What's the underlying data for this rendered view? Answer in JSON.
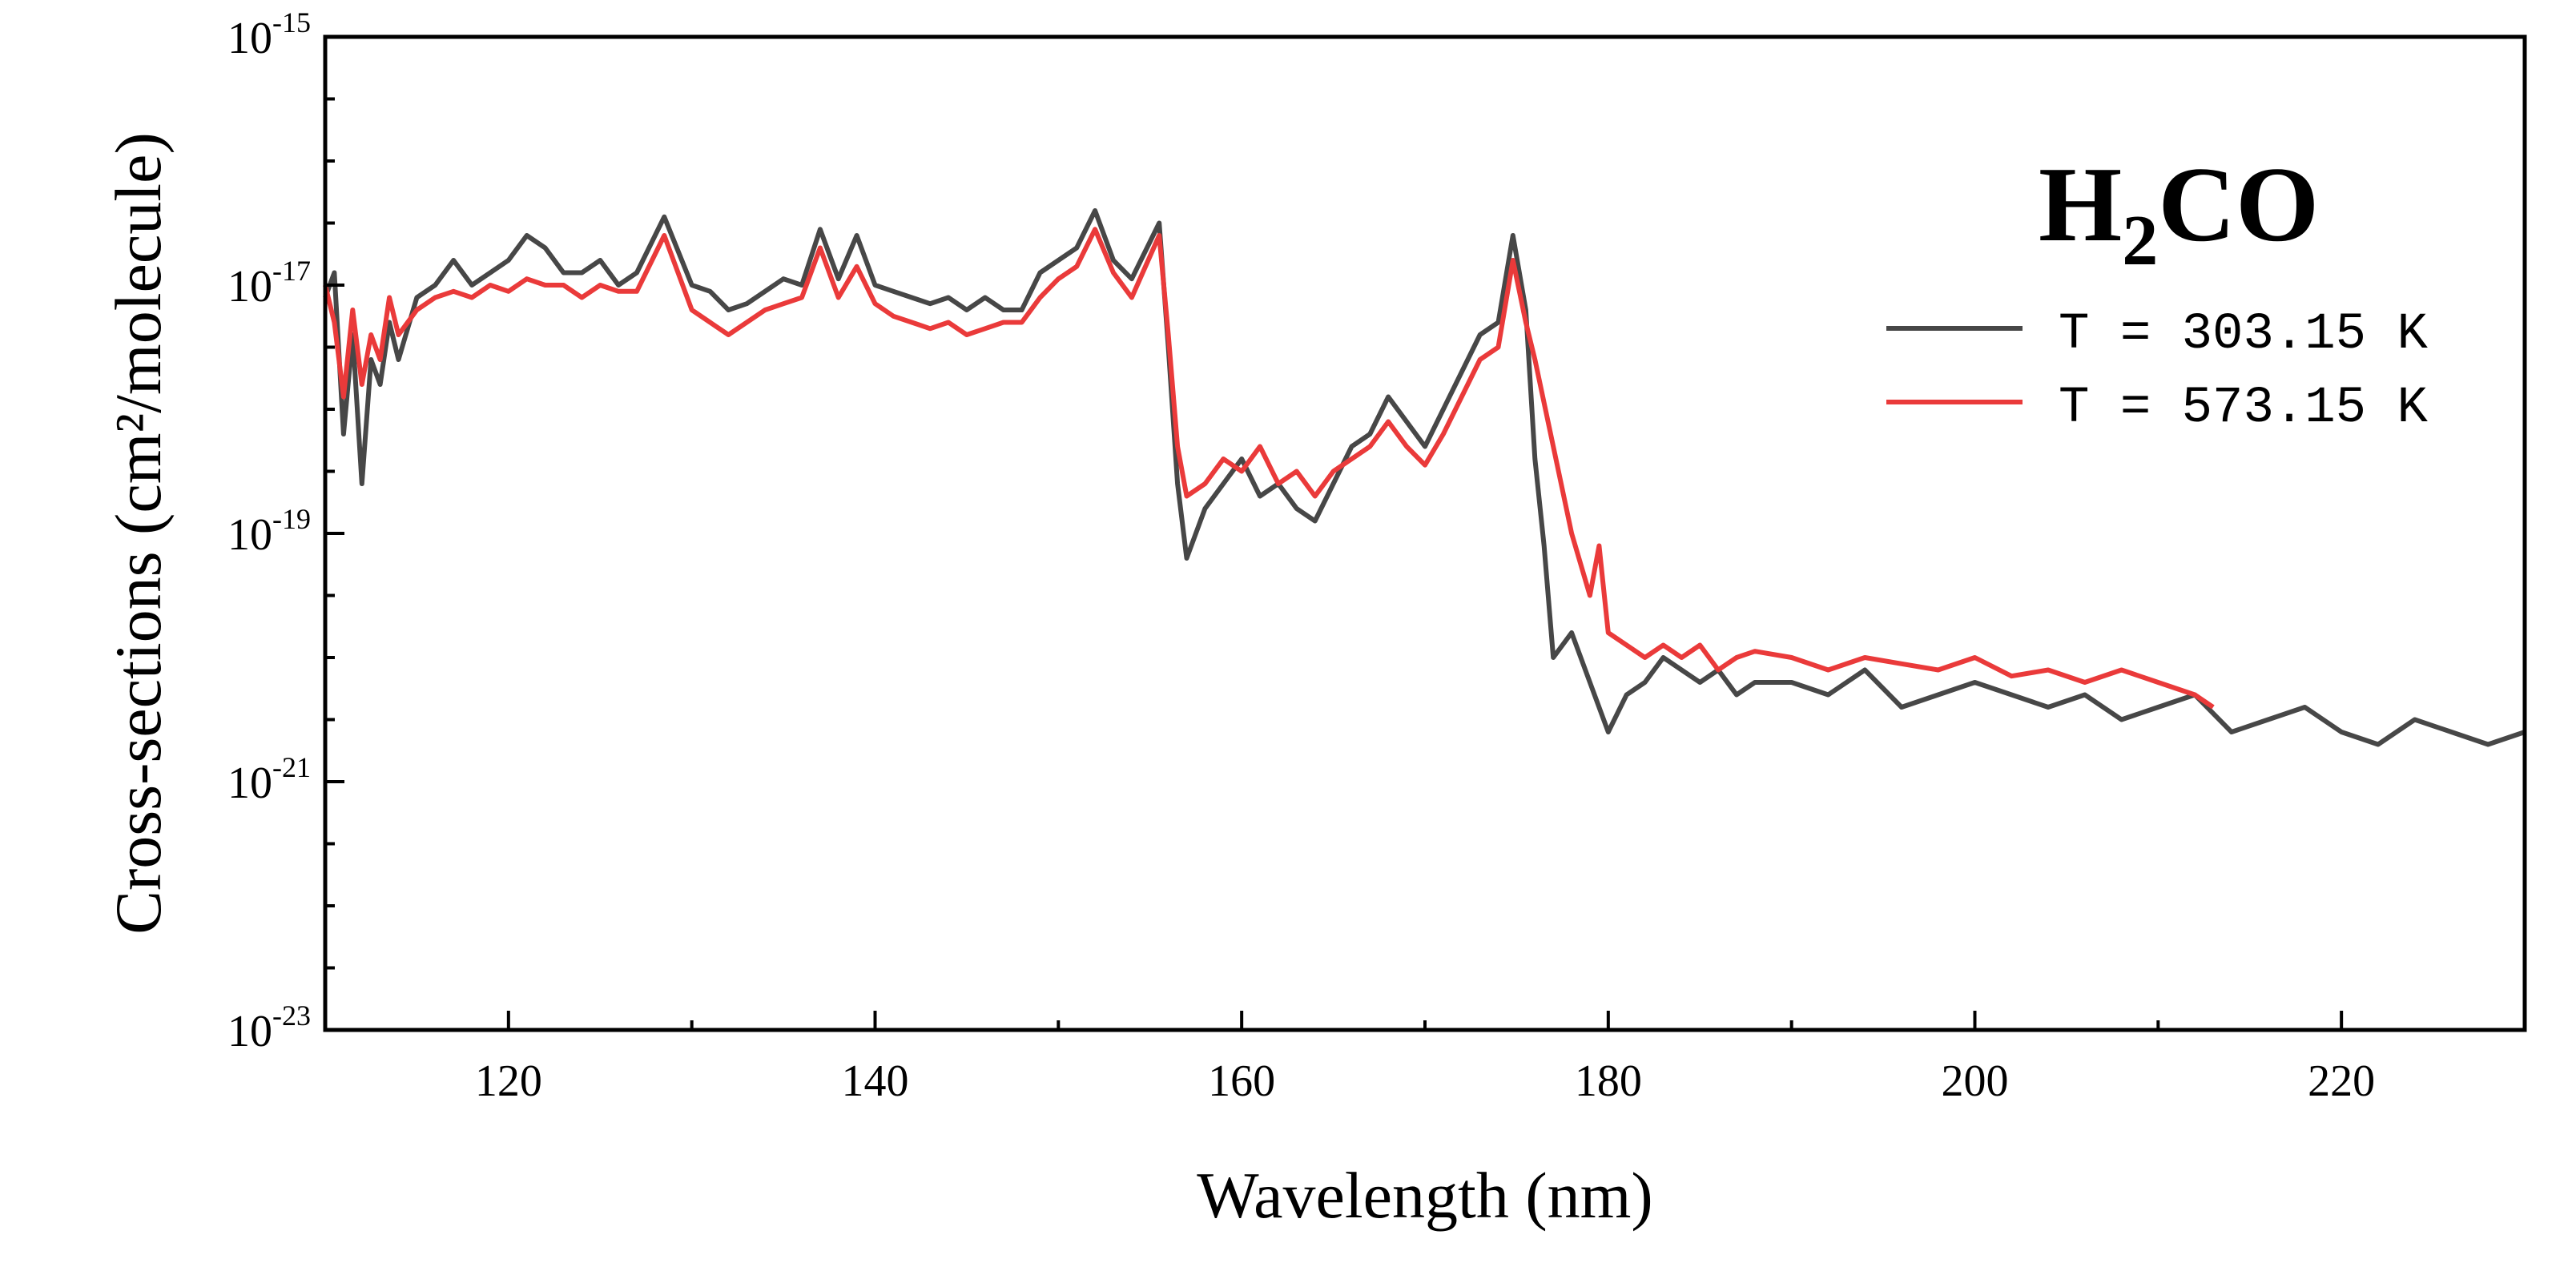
{
  "chart_data": {
    "type": "line",
    "title": "H2CO",
    "title_main": "H",
    "title_sub": "2",
    "title_rest": "CO",
    "xlabel": "Wavelength (nm)",
    "ylabel": "Cross-sections (cm²/molecule)",
    "x_scale": "linear",
    "y_scale": "log",
    "xlim": [
      110,
      230
    ],
    "ylim_exp": [
      -23,
      -15
    ],
    "x_ticks": [
      120,
      140,
      160,
      180,
      200,
      220
    ],
    "y_tick_labels": [
      {
        "exp": -15,
        "base": "10",
        "sup": "-15"
      },
      {
        "exp": -17,
        "base": "10",
        "sup": "-17"
      },
      {
        "exp": -19,
        "base": "10",
        "sup": "-19"
      },
      {
        "exp": -21,
        "base": "10",
        "sup": "-21"
      },
      {
        "exp": -23,
        "base": "10",
        "sup": "-23"
      }
    ],
    "legend_position": "top-right",
    "series": [
      {
        "name": "T = 303.15 K",
        "color": "#474747",
        "points": [
          [
            110,
            -17.1
          ],
          [
            110.5,
            -16.9
          ],
          [
            111,
            -18.2
          ],
          [
            111.5,
            -17.4
          ],
          [
            112,
            -18.6
          ],
          [
            112.5,
            -17.6
          ],
          [
            113,
            -17.8
          ],
          [
            113.5,
            -17.3
          ],
          [
            114,
            -17.6
          ],
          [
            115,
            -17.1
          ],
          [
            116,
            -17.0
          ],
          [
            117,
            -16.8
          ],
          [
            118,
            -17.0
          ],
          [
            119,
            -16.9
          ],
          [
            120,
            -16.8
          ],
          [
            121,
            -16.6
          ],
          [
            122,
            -16.7
          ],
          [
            123,
            -16.9
          ],
          [
            124,
            -16.9
          ],
          [
            125,
            -16.8
          ],
          [
            126,
            -17.0
          ],
          [
            127,
            -16.9
          ],
          [
            128.5,
            -16.45
          ],
          [
            130,
            -17.0
          ],
          [
            131,
            -17.05
          ],
          [
            132,
            -17.2
          ],
          [
            133,
            -17.15
          ],
          [
            134,
            -17.05
          ],
          [
            135,
            -16.95
          ],
          [
            136,
            -17.0
          ],
          [
            137,
            -16.55
          ],
          [
            138,
            -16.95
          ],
          [
            139,
            -16.6
          ],
          [
            140,
            -17.0
          ],
          [
            141,
            -17.05
          ],
          [
            142,
            -17.1
          ],
          [
            143,
            -17.15
          ],
          [
            144,
            -17.1
          ],
          [
            145,
            -17.2
          ],
          [
            146,
            -17.1
          ],
          [
            147,
            -17.2
          ],
          [
            148,
            -17.2
          ],
          [
            149,
            -16.9
          ],
          [
            150,
            -16.8
          ],
          [
            151,
            -16.7
          ],
          [
            152,
            -16.4
          ],
          [
            153,
            -16.8
          ],
          [
            154,
            -16.95
          ],
          [
            155.5,
            -16.5
          ],
          [
            156,
            -17.5
          ],
          [
            156.5,
            -18.6
          ],
          [
            157,
            -19.2
          ],
          [
            158,
            -18.8
          ],
          [
            159,
            -18.6
          ],
          [
            160,
            -18.4
          ],
          [
            161,
            -18.7
          ],
          [
            162,
            -18.6
          ],
          [
            163,
            -18.8
          ],
          [
            164,
            -18.9
          ],
          [
            165,
            -18.6
          ],
          [
            166,
            -18.3
          ],
          [
            167,
            -18.2
          ],
          [
            168,
            -17.9
          ],
          [
            169,
            -18.1
          ],
          [
            170,
            -18.3
          ],
          [
            171,
            -18.0
          ],
          [
            172,
            -17.7
          ],
          [
            173,
            -17.4
          ],
          [
            174,
            -17.3
          ],
          [
            174.8,
            -16.6
          ],
          [
            175.5,
            -17.2
          ],
          [
            176,
            -18.4
          ],
          [
            176.5,
            -19.1
          ],
          [
            177,
            -20.0
          ],
          [
            178,
            -19.8
          ],
          [
            179,
            -20.2
          ],
          [
            180,
            -20.6
          ],
          [
            181,
            -20.3
          ],
          [
            182,
            -20.2
          ],
          [
            183,
            -20.0
          ],
          [
            184,
            -20.1
          ],
          [
            185,
            -20.2
          ],
          [
            186,
            -20.1
          ],
          [
            187,
            -20.3
          ],
          [
            188,
            -20.2
          ],
          [
            190,
            -20.2
          ],
          [
            192,
            -20.3
          ],
          [
            194,
            -20.1
          ],
          [
            196,
            -20.4
          ],
          [
            198,
            -20.3
          ],
          [
            200,
            -20.2
          ],
          [
            202,
            -20.3
          ],
          [
            204,
            -20.4
          ],
          [
            206,
            -20.3
          ],
          [
            208,
            -20.5
          ],
          [
            210,
            -20.4
          ],
          [
            212,
            -20.3
          ],
          [
            214,
            -20.6
          ],
          [
            216,
            -20.5
          ],
          [
            218,
            -20.4
          ],
          [
            220,
            -20.6
          ],
          [
            222,
            -20.7
          ],
          [
            224,
            -20.5
          ],
          [
            226,
            -20.6
          ],
          [
            228,
            -20.7
          ],
          [
            230,
            -20.6
          ]
        ]
      },
      {
        "name": "T = 573.15 K",
        "color": "#ea3a3a",
        "points": [
          [
            110,
            -17.0
          ],
          [
            110.5,
            -17.3
          ],
          [
            111,
            -17.9
          ],
          [
            111.5,
            -17.2
          ],
          [
            112,
            -17.8
          ],
          [
            112.5,
            -17.4
          ],
          [
            113,
            -17.6
          ],
          [
            113.5,
            -17.1
          ],
          [
            114,
            -17.4
          ],
          [
            115,
            -17.2
          ],
          [
            116,
            -17.1
          ],
          [
            117,
            -17.05
          ],
          [
            118,
            -17.1
          ],
          [
            119,
            -17.0
          ],
          [
            120,
            -17.05
          ],
          [
            121,
            -16.95
          ],
          [
            122,
            -17.0
          ],
          [
            123,
            -17.0
          ],
          [
            124,
            -17.1
          ],
          [
            125,
            -17.0
          ],
          [
            126,
            -17.05
          ],
          [
            127,
            -17.05
          ],
          [
            128.5,
            -16.6
          ],
          [
            130,
            -17.2
          ],
          [
            131,
            -17.3
          ],
          [
            132,
            -17.4
          ],
          [
            133,
            -17.3
          ],
          [
            134,
            -17.2
          ],
          [
            135,
            -17.15
          ],
          [
            136,
            -17.1
          ],
          [
            137,
            -16.7
          ],
          [
            138,
            -17.1
          ],
          [
            139,
            -16.85
          ],
          [
            140,
            -17.15
          ],
          [
            141,
            -17.25
          ],
          [
            142,
            -17.3
          ],
          [
            143,
            -17.35
          ],
          [
            144,
            -17.3
          ],
          [
            145,
            -17.4
          ],
          [
            146,
            -17.35
          ],
          [
            147,
            -17.3
          ],
          [
            148,
            -17.3
          ],
          [
            149,
            -17.1
          ],
          [
            150,
            -16.95
          ],
          [
            151,
            -16.85
          ],
          [
            152,
            -16.55
          ],
          [
            153,
            -16.9
          ],
          [
            154,
            -17.1
          ],
          [
            155.5,
            -16.6
          ],
          [
            156,
            -17.4
          ],
          [
            156.5,
            -18.3
          ],
          [
            157,
            -18.7
          ],
          [
            158,
            -18.6
          ],
          [
            159,
            -18.4
          ],
          [
            160,
            -18.5
          ],
          [
            161,
            -18.3
          ],
          [
            162,
            -18.6
          ],
          [
            163,
            -18.5
          ],
          [
            164,
            -18.7
          ],
          [
            165,
            -18.5
          ],
          [
            166,
            -18.4
          ],
          [
            167,
            -18.3
          ],
          [
            168,
            -18.1
          ],
          [
            169,
            -18.3
          ],
          [
            170,
            -18.45
          ],
          [
            171,
            -18.2
          ],
          [
            172,
            -17.9
          ],
          [
            173,
            -17.6
          ],
          [
            174,
            -17.5
          ],
          [
            174.8,
            -16.8
          ],
          [
            175.5,
            -17.3
          ],
          [
            176,
            -17.6
          ],
          [
            177,
            -18.3
          ],
          [
            178,
            -19.0
          ],
          [
            179,
            -19.5
          ],
          [
            179.5,
            -19.1
          ],
          [
            180,
            -19.8
          ],
          [
            181,
            -19.9
          ],
          [
            182,
            -20.0
          ],
          [
            183,
            -19.9
          ],
          [
            184,
            -20.0
          ],
          [
            185,
            -19.9
          ],
          [
            186,
            -20.1
          ],
          [
            187,
            -20.0
          ],
          [
            188,
            -19.95
          ],
          [
            190,
            -20.0
          ],
          [
            192,
            -20.1
          ],
          [
            194,
            -20.0
          ],
          [
            196,
            -20.05
          ],
          [
            198,
            -20.1
          ],
          [
            200,
            -20.0
          ],
          [
            202,
            -20.15
          ],
          [
            204,
            -20.1
          ],
          [
            206,
            -20.2
          ],
          [
            208,
            -20.1
          ],
          [
            210,
            -20.2
          ],
          [
            212,
            -20.3
          ],
          [
            213,
            -20.4
          ]
        ]
      }
    ]
  }
}
